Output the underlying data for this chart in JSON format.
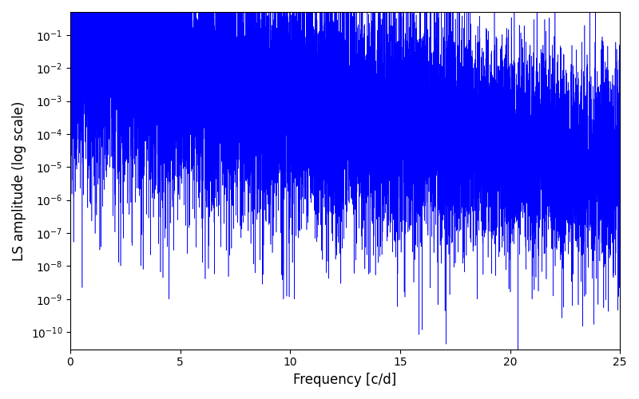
{
  "xlabel": "Frequency [c/d]",
  "ylabel": "LS amplitude (log scale)",
  "line_color": "#0000ff",
  "xlim": [
    0,
    25
  ],
  "ylim": [
    3e-11,
    0.5
  ],
  "background_color": "#ffffff",
  "figsize": [
    8.0,
    5.0
  ],
  "dpi": 100,
  "seed": 42
}
